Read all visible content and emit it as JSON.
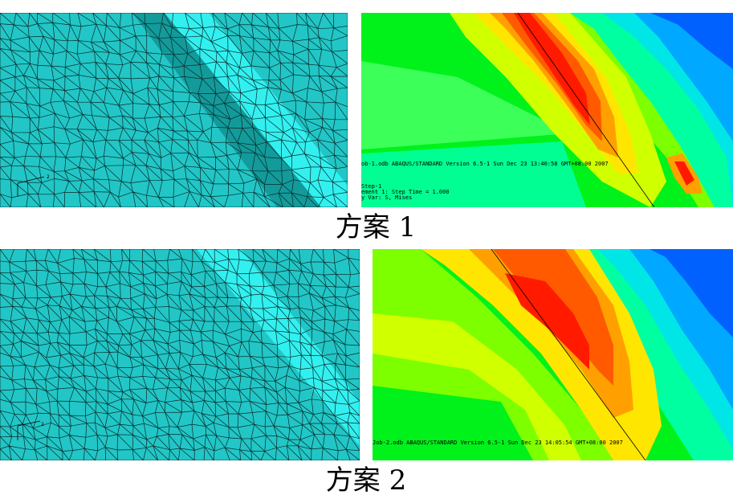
{
  "schemes": [
    {
      "caption": "方案 1",
      "odb_line": "ob-1.odb    ABAQUS/STANDARD Version 6.5-1    Sun Dec 23 13:40:58 GMT+08:00 2007",
      "step_line": "Step-1",
      "increment_line": "ement     1: Step Time =     1.000",
      "var_line": "y Var: S, Mises",
      "axis_label": "2"
    },
    {
      "caption": "方案 2",
      "odb_line": "Job-2.odb    ABAQUS/STANDARD Version 6.5-1    Sun Dec 23 14:05:54 GMT+08:00 2007",
      "axis_label": "2"
    }
  ],
  "colors": {
    "mesh_base": "#22c6c6",
    "mesh_band": "#33f0f0",
    "mesh_band_dark": "#0f8585",
    "contour_scale": [
      "#0061ff",
      "#00a9ff",
      "#00e6e6",
      "#00ffa0",
      "#00f21a",
      "#7dff00",
      "#d0ff00",
      "#ffe600",
      "#ffa000",
      "#ff5a00",
      "#ff1a00"
    ]
  }
}
